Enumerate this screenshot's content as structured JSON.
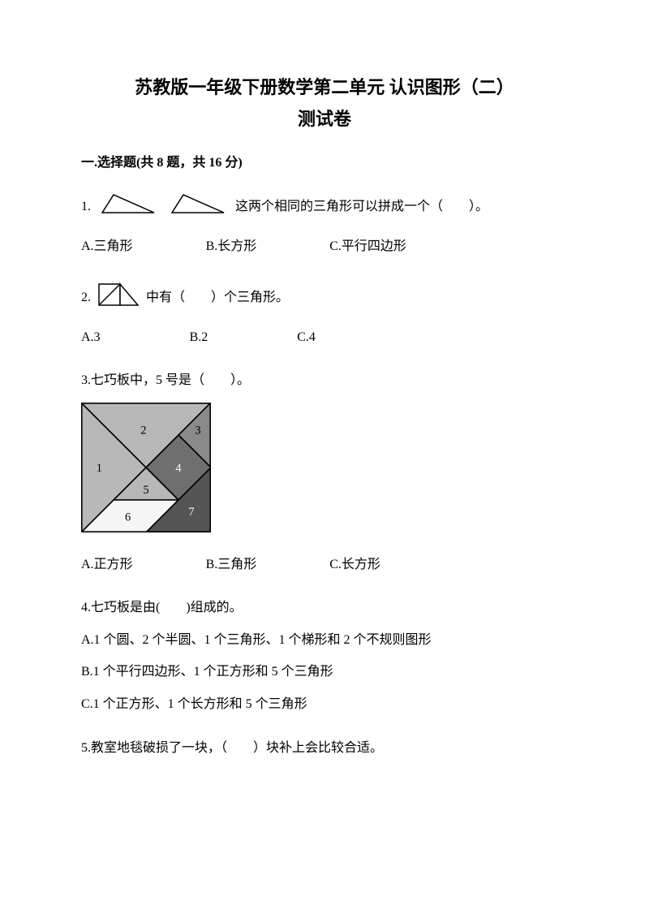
{
  "title_line1": "苏教版一年级下册数学第二单元 认识图形（二）",
  "title_line2": "测试卷",
  "section1": {
    "header": "一.选择题(共 8 题，共 16 分)"
  },
  "q1": {
    "num": "1.",
    "text": "这两个相同的三角形可以拼成一个（　　）。",
    "optA": "A.三角形",
    "optB": "B.长方形",
    "optC": "C.平行四边形",
    "tri": {
      "stroke": "#000000",
      "fill": "#ffffff",
      "stroke_width": 1.5
    }
  },
  "q2": {
    "num": "2.",
    "mid": "中有（　　）个三角形。",
    "optA": "A.3",
    "optB": "B.2",
    "optC": "C.4",
    "shape": {
      "stroke": "#000000",
      "fill": "#ffffff",
      "stroke_width": 1.5
    }
  },
  "q3": {
    "text": "3.七巧板中，5 号是（　　）。",
    "optA": "A.正方形",
    "optB": "B.三角形",
    "optC": "C.长方形",
    "tangram": {
      "size": 160,
      "border_stroke": "#000000",
      "border_width": 2,
      "inner_stroke": "#000000",
      "inner_width": 1,
      "label_font": 13,
      "colors": {
        "p1": "#b8b8b8",
        "p2": "#b8b8b8",
        "p3": "#8a8a8a",
        "p4": "#6f6f6f",
        "p5": "#b8b8b8",
        "p6": "#f5f5f5",
        "p7": "#555555"
      },
      "labels": {
        "l1": "1",
        "l2": "2",
        "l3": "3",
        "l4": "4",
        "l5": "5",
        "l6": "6",
        "l7": "7"
      }
    }
  },
  "q4": {
    "text": "4.七巧板是由(　　)组成的。",
    "optA": "A.1 个圆、2 个半圆、1 个三角形、1 个梯形和 2 个不规则图形",
    "optB": "B.1 个平行四边形、1 个正方形和 5 个三角形",
    "optC": "C.1 个正方形、1 个长方形和 5 个三角形"
  },
  "q5": {
    "text": "5.教室地毯破损了一块，（　　）块补上会比较合适。"
  }
}
